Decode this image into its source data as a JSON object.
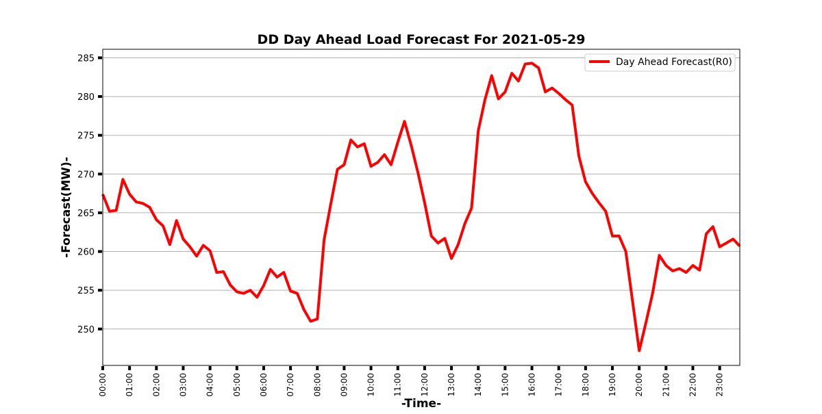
{
  "chart_data": {
    "type": "line",
    "title": "DD Day Ahead Load Forecast For 2021-05-29",
    "xlabel": "-Time-",
    "ylabel": "-Forecast(MW)-",
    "x_tick_labels": [
      "00:00",
      "01:00",
      "02:00",
      "03:00",
      "04:00",
      "05:00",
      "06:00",
      "07:00",
      "08:00",
      "09:00",
      "10:00",
      "11:00",
      "12:00",
      "13:00",
      "14:00",
      "15:00",
      "16:00",
      "17:00",
      "18:00",
      "19:00",
      "20:00",
      "21:00",
      "22:00",
      "23:00"
    ],
    "y_ticks": [
      250,
      255,
      260,
      265,
      270,
      275,
      280,
      285
    ],
    "ylim": [
      245.3,
      286.1
    ],
    "xlim_hours": [
      0,
      23.75
    ],
    "grid": "y",
    "legend_position": "top-right",
    "line_color": "#ff0000",
    "series": [
      {
        "name": "Day Ahead Forecast(R0)",
        "x_hours": [
          0,
          0.25,
          0.5,
          0.75,
          1,
          1.25,
          1.5,
          1.75,
          2,
          2.25,
          2.5,
          2.75,
          3,
          3.25,
          3.5,
          3.75,
          4,
          4.25,
          4.5,
          4.75,
          5,
          5.25,
          5.5,
          5.75,
          6,
          6.25,
          6.5,
          6.75,
          7,
          7.25,
          7.5,
          7.75,
          8,
          8.25,
          8.5,
          8.75,
          9,
          9.25,
          9.5,
          9.75,
          10,
          10.25,
          10.5,
          10.75,
          11,
          11.25,
          11.5,
          11.75,
          12,
          12.25,
          12.5,
          12.75,
          13,
          13.25,
          13.5,
          13.75,
          14,
          14.25,
          14.5,
          14.75,
          15,
          15.25,
          15.5,
          15.75,
          16,
          16.25,
          16.5,
          16.75,
          17,
          17.25,
          17.5,
          17.75,
          18,
          18.25,
          18.5,
          18.75,
          19,
          19.25,
          19.5,
          19.75,
          20,
          20.25,
          20.5,
          20.75,
          21,
          21.25,
          21.5,
          21.75,
          22,
          22.25,
          22.5,
          22.75,
          23,
          23.25,
          23.5,
          23.75
        ],
        "values": [
          267.4,
          265.2,
          265.3,
          269.3,
          267.4,
          266.4,
          266.2,
          265.7,
          264.1,
          263.3,
          260.9,
          264.0,
          261.6,
          260.6,
          259.4,
          260.8,
          260.1,
          257.3,
          257.4,
          255.7,
          254.8,
          254.6,
          255.0,
          254.1,
          255.6,
          257.7,
          256.7,
          257.3,
          254.9,
          254.6,
          252.5,
          251.0,
          251.3,
          261.5,
          266.1,
          270.6,
          271.2,
          274.4,
          273.5,
          273.9,
          271.0,
          271.5,
          272.5,
          271.2,
          274.1,
          276.8,
          273.7,
          270.2,
          266.3,
          262.0,
          261.1,
          261.7,
          259.1,
          260.9,
          263.6,
          265.6,
          275.6,
          279.6,
          282.7,
          279.7,
          280.6,
          283.0,
          282.0,
          284.2,
          284.3,
          283.7,
          280.6,
          281.1,
          280.4,
          279.6,
          278.9,
          272.3,
          269.0,
          267.5,
          266.3,
          265.2,
          262.0,
          262.0,
          260.0,
          253.6,
          247.2,
          250.8,
          254.6,
          259.5,
          258.2,
          257.5,
          257.8,
          257.3,
          258.2,
          257.6,
          262.3,
          263.2,
          260.6,
          261.1,
          261.6,
          260.7
        ]
      }
    ]
  }
}
